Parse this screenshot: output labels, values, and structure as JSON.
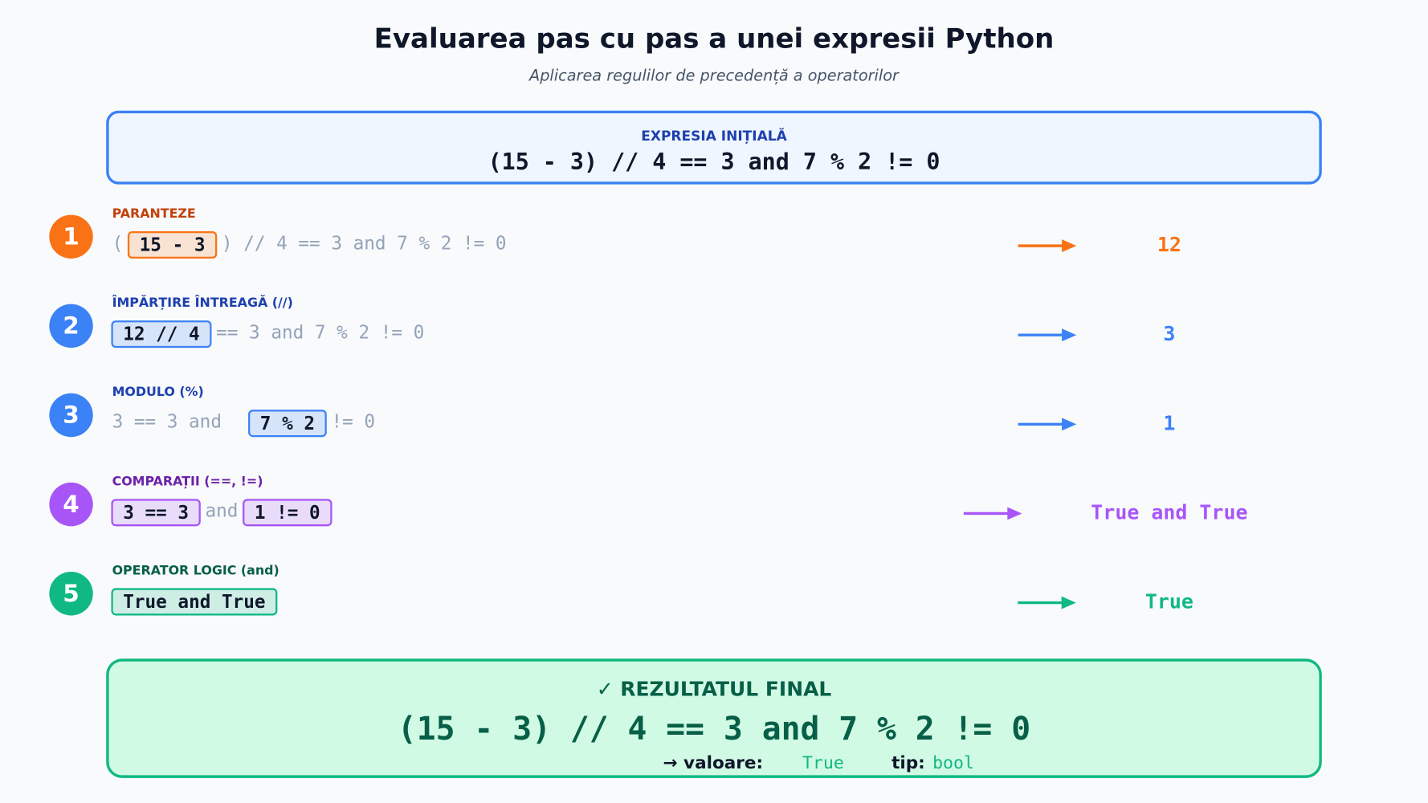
{
  "title": "Evaluarea pas cu pas a unei expresii Python",
  "subtitle": "Aplicarea regulilor de precedență a operatorilor",
  "initial": {
    "label": "EXPRESIA INIȚIALĂ",
    "expression": "(15 - 3) // 4 == 3 and 7 % 2 != 0"
  },
  "steps": [
    {
      "number": 1,
      "label": "PARANTEZE",
      "color": "#f97316",
      "label_color": "#c2410c",
      "segments": [
        {
          "text": "("
        },
        {
          "box": "15 - 3"
        },
        {
          "text": ") // 4 == 3 and 7 % 2 != 0"
        }
      ],
      "result": "12"
    },
    {
      "number": 2,
      "label": "ÎMPĂRȚIRE ÎNTREAGĂ (//)",
      "color": "#3b82f6",
      "label_color": "#1e40af",
      "segments": [
        {
          "box": "12 // 4"
        },
        {
          "text": "== 3 and 7 % 2 != 0"
        }
      ],
      "result": "3"
    },
    {
      "number": 3,
      "label": "MODULO (%)",
      "color": "#3b82f6",
      "label_color": "#1e40af",
      "segments": [
        {
          "text": "3 == 3 and  "
        },
        {
          "box": "7 % 2"
        },
        {
          "text": "!= 0"
        }
      ],
      "result": "1"
    },
    {
      "number": 4,
      "label": "COMPARAȚII (==, !=)",
      "color": "#a855f7",
      "label_color": "#6b21a8",
      "segments": [
        {
          "box": "3 == 3"
        },
        {
          "text": "and"
        },
        {
          "box": "1 != 0"
        }
      ],
      "result": "True and True"
    },
    {
      "number": 5,
      "label": "OPERATOR LOGIC (and)",
      "color": "#10b981",
      "label_color": "#065f46",
      "segments": [
        {
          "box": "True and True"
        }
      ],
      "result": "True"
    }
  ],
  "final": {
    "label": "✓ REZULTATUL FINAL",
    "expression": "(15 - 3) // 4 == 3 and 7 % 2 != 0",
    "value_label": "→ valoare:",
    "value": "True",
    "type_label": "tip:",
    "type": "bool"
  }
}
